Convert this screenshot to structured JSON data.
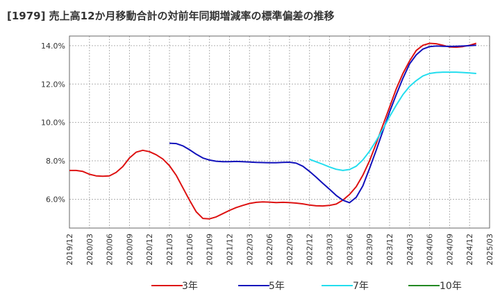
{
  "chart_data": {
    "type": "line",
    "title": "[1979]  売上高12か月移動合計の対前年同期増減率の標準偏差の推移",
    "x": [
      "2019/12",
      "2020/03",
      "2020/06",
      "2020/09",
      "2020/12",
      "2021/03",
      "2021/06",
      "2021/09",
      "2021/12",
      "2022/03",
      "2022/06",
      "2022/09",
      "2022/12",
      "2023/03",
      "2023/06",
      "2023/09",
      "2023/12",
      "2024/03",
      "2024/06",
      "2024/09",
      "2024/12",
      "2025/03"
    ],
    "ylim": [
      4.5,
      14.5
    ],
    "yticks": [
      "6.0%",
      "8.0%",
      "10.0%",
      "12.0%",
      "14.0%"
    ],
    "grid": true,
    "legend_position": "bottom",
    "series": [
      {
        "name": "3年",
        "color": "#dd1111",
        "points": [
          [
            "2019/12",
            7.5
          ],
          [
            "2020/01",
            7.5
          ],
          [
            "2020/02",
            7.45
          ],
          [
            "2020/03",
            7.3
          ],
          [
            "2020/04",
            7.22
          ],
          [
            "2020/05",
            7.2
          ],
          [
            "2020/06",
            7.22
          ],
          [
            "2020/07",
            7.4
          ],
          [
            "2020/08",
            7.7
          ],
          [
            "2020/09",
            8.15
          ],
          [
            "2020/10",
            8.45
          ],
          [
            "2020/11",
            8.55
          ],
          [
            "2020/12",
            8.48
          ],
          [
            "2021/01",
            8.32
          ],
          [
            "2021/02",
            8.1
          ],
          [
            "2021/03",
            7.75
          ],
          [
            "2021/04",
            7.25
          ],
          [
            "2021/05",
            6.6
          ],
          [
            "2021/06",
            5.95
          ],
          [
            "2021/07",
            5.35
          ],
          [
            "2021/08",
            5.0
          ],
          [
            "2021/09",
            4.98
          ],
          [
            "2021/10",
            5.08
          ],
          [
            "2021/11",
            5.25
          ],
          [
            "2021/12",
            5.42
          ],
          [
            "2022/01",
            5.57
          ],
          [
            "2022/02",
            5.68
          ],
          [
            "2022/03",
            5.78
          ],
          [
            "2022/04",
            5.84
          ],
          [
            "2022/05",
            5.86
          ],
          [
            "2022/06",
            5.85
          ],
          [
            "2022/07",
            5.83
          ],
          [
            "2022/08",
            5.84
          ],
          [
            "2022/09",
            5.83
          ],
          [
            "2022/10",
            5.8
          ],
          [
            "2022/11",
            5.76
          ],
          [
            "2022/12",
            5.7
          ],
          [
            "2023/01",
            5.66
          ],
          [
            "2023/02",
            5.65
          ],
          [
            "2023/03",
            5.68
          ],
          [
            "2023/04",
            5.75
          ],
          [
            "2023/05",
            5.95
          ],
          [
            "2023/06",
            6.25
          ],
          [
            "2023/07",
            6.65
          ],
          [
            "2023/08",
            7.25
          ],
          [
            "2023/09",
            8.0
          ],
          [
            "2023/10",
            8.9
          ],
          [
            "2023/11",
            9.85
          ],
          [
            "2023/12",
            10.8
          ],
          [
            "2024/01",
            11.75
          ],
          [
            "2024/02",
            12.55
          ],
          [
            "2024/03",
            13.2
          ],
          [
            "2024/04",
            13.75
          ],
          [
            "2024/05",
            14.02
          ],
          [
            "2024/06",
            14.12
          ],
          [
            "2024/07",
            14.1
          ],
          [
            "2024/08",
            14.02
          ],
          [
            "2024/09",
            13.93
          ],
          [
            "2024/10",
            13.92
          ],
          [
            "2024/11",
            13.95
          ],
          [
            "2024/12",
            14.02
          ],
          [
            "2025/01",
            14.12
          ]
        ]
      },
      {
        "name": "5年",
        "color": "#1111bb",
        "points": [
          [
            "2021/03",
            8.92
          ],
          [
            "2021/04",
            8.9
          ],
          [
            "2021/05",
            8.78
          ],
          [
            "2021/06",
            8.58
          ],
          [
            "2021/07",
            8.35
          ],
          [
            "2021/08",
            8.15
          ],
          [
            "2021/09",
            8.04
          ],
          [
            "2021/10",
            7.98
          ],
          [
            "2021/11",
            7.96
          ],
          [
            "2021/12",
            7.96
          ],
          [
            "2022/01",
            7.97
          ],
          [
            "2022/02",
            7.96
          ],
          [
            "2022/03",
            7.94
          ],
          [
            "2022/04",
            7.92
          ],
          [
            "2022/05",
            7.91
          ],
          [
            "2022/06",
            7.9
          ],
          [
            "2022/07",
            7.9
          ],
          [
            "2022/08",
            7.92
          ],
          [
            "2022/09",
            7.93
          ],
          [
            "2022/10",
            7.88
          ],
          [
            "2022/11",
            7.72
          ],
          [
            "2022/12",
            7.45
          ],
          [
            "2023/01",
            7.15
          ],
          [
            "2023/02",
            6.83
          ],
          [
            "2023/03",
            6.52
          ],
          [
            "2023/04",
            6.2
          ],
          [
            "2023/05",
            5.95
          ],
          [
            "2023/06",
            5.82
          ],
          [
            "2023/07",
            6.1
          ],
          [
            "2023/08",
            6.7
          ],
          [
            "2023/09",
            7.6
          ],
          [
            "2023/10",
            8.55
          ],
          [
            "2023/11",
            9.55
          ],
          [
            "2023/12",
            10.55
          ],
          [
            "2024/01",
            11.45
          ],
          [
            "2024/02",
            12.3
          ],
          [
            "2024/03",
            13.05
          ],
          [
            "2024/04",
            13.52
          ],
          [
            "2024/05",
            13.82
          ],
          [
            "2024/06",
            13.95
          ],
          [
            "2024/07",
            13.98
          ],
          [
            "2024/08",
            13.97
          ],
          [
            "2024/09",
            13.96
          ],
          [
            "2024/10",
            13.97
          ],
          [
            "2024/11",
            13.98
          ],
          [
            "2024/12",
            14.0
          ],
          [
            "2025/01",
            14.02
          ]
        ]
      },
      {
        "name": "7年",
        "color": "#22ddee",
        "points": [
          [
            "2022/12",
            8.08
          ],
          [
            "2023/01",
            7.95
          ],
          [
            "2023/02",
            7.82
          ],
          [
            "2023/03",
            7.68
          ],
          [
            "2023/04",
            7.56
          ],
          [
            "2023/05",
            7.5
          ],
          [
            "2023/06",
            7.55
          ],
          [
            "2023/07",
            7.72
          ],
          [
            "2023/08",
            8.05
          ],
          [
            "2023/09",
            8.5
          ],
          [
            "2023/10",
            9.05
          ],
          [
            "2023/11",
            9.65
          ],
          [
            "2023/12",
            10.3
          ],
          [
            "2024/01",
            10.9
          ],
          [
            "2024/02",
            11.45
          ],
          [
            "2024/03",
            11.88
          ],
          [
            "2024/04",
            12.18
          ],
          [
            "2024/05",
            12.42
          ],
          [
            "2024/06",
            12.55
          ],
          [
            "2024/07",
            12.6
          ],
          [
            "2024/08",
            12.62
          ],
          [
            "2024/09",
            12.62
          ],
          [
            "2024/10",
            12.62
          ],
          [
            "2024/11",
            12.6
          ],
          [
            "2024/12",
            12.58
          ],
          [
            "2025/01",
            12.55
          ]
        ]
      },
      {
        "name": "10年",
        "color": "#228822",
        "points": []
      }
    ]
  }
}
